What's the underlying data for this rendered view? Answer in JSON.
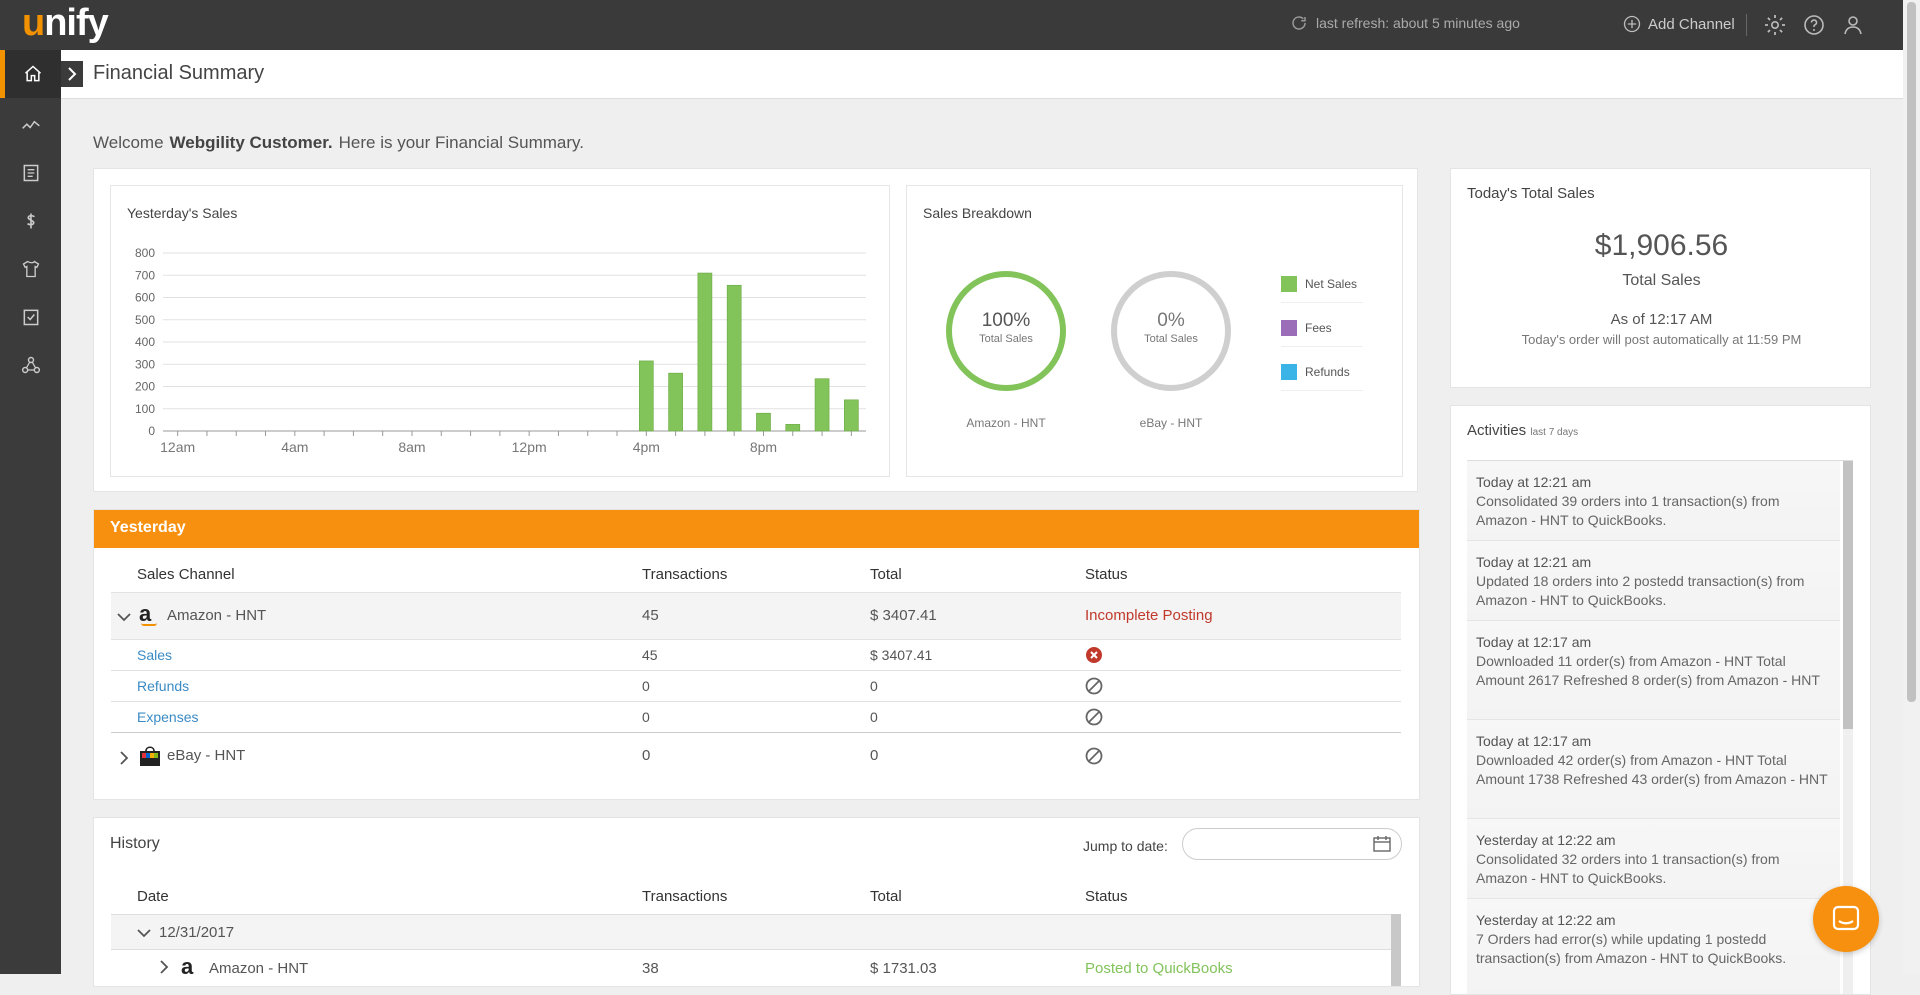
{
  "app": {
    "logo": "unify",
    "logo_initial": "u",
    "logo_rest": "nify"
  },
  "topbar": {
    "refresh_text": "last refresh: about 5 minutes ago",
    "add_channel": "Add Channel",
    "icons": [
      "refresh-icon",
      "plus-circle-icon",
      "gear-icon",
      "help-icon",
      "user-icon"
    ]
  },
  "sidebar": {
    "items": [
      {
        "name": "home-icon",
        "active": true
      },
      {
        "name": "analytics-icon"
      },
      {
        "name": "orders-icon"
      },
      {
        "name": "dollar-icon"
      },
      {
        "name": "products-icon"
      },
      {
        "name": "tasks-icon"
      },
      {
        "name": "integrations-icon"
      }
    ]
  },
  "header": {
    "title": "Financial Summary"
  },
  "welcome": {
    "prefix": "Welcome",
    "name": "Webgility Customer.",
    "suffix": "Here is your Financial Summary."
  },
  "yesterday_sales": {
    "title": "Yesterday's Sales",
    "chart_data": {
      "type": "bar",
      "title": "Yesterday's Sales",
      "x_tick_labels": [
        "12am",
        "4am",
        "8am",
        "12pm",
        "4pm",
        "8pm"
      ],
      "y_ticks": [
        0,
        100,
        200,
        300,
        400,
        500,
        600,
        700,
        800
      ],
      "ylim": [
        0,
        800
      ],
      "hours": [
        0,
        1,
        2,
        3,
        4,
        5,
        6,
        7,
        8,
        9,
        10,
        11,
        12,
        13,
        14,
        15,
        16,
        17,
        18,
        19,
        20,
        21,
        22,
        23
      ],
      "values": [
        0,
        0,
        0,
        0,
        0,
        0,
        0,
        0,
        0,
        0,
        0,
        0,
        0,
        0,
        0,
        0,
        315,
        260,
        710,
        655,
        80,
        30,
        235,
        140
      ],
      "color": "#82c35a",
      "grid": true
    }
  },
  "sales_breakdown": {
    "title": "Sales Breakdown",
    "rings": [
      {
        "pct": "100%",
        "sub": "Total Sales",
        "label": "Amazon - HNT",
        "color": "#82c35a",
        "fill": 1.0
      },
      {
        "pct": "0%",
        "sub": "Total Sales",
        "label": "eBay - HNT",
        "color": "#cfcfcf",
        "fill": 0.0
      }
    ],
    "legend": [
      {
        "label": "Net Sales",
        "color": "#82c35a"
      },
      {
        "label": "Fees",
        "color": "#9b6db8"
      },
      {
        "label": "Refunds",
        "color": "#3ab3e6"
      }
    ]
  },
  "today_total": {
    "title": "Today's Total Sales",
    "amount": "$1,906.56",
    "amount_label": "Total Sales",
    "as_of": "As of 12:17 AM",
    "note": "Today's order will post automatically at 11:59 PM"
  },
  "yesterday": {
    "header": "Yesterday",
    "columns": [
      "Sales Channel",
      "Transactions",
      "Total",
      "Status"
    ],
    "channels": [
      {
        "name": "Amazon - HNT",
        "transactions": "45",
        "total": "$ 3407.41",
        "status": "Incomplete Posting",
        "expanded": true,
        "rows": [
          {
            "label": "Sales",
            "transactions": "45",
            "total": "$ 3407.41",
            "status_icon": "error-icon"
          },
          {
            "label": "Refunds",
            "transactions": "0",
            "total": "0",
            "status_icon": "na-icon"
          },
          {
            "label": "Expenses",
            "transactions": "0",
            "total": "0",
            "status_icon": "na-icon"
          }
        ]
      },
      {
        "name": "eBay - HNT",
        "transactions": "0",
        "total": "0",
        "status_icon": "na-icon",
        "expanded": false
      }
    ]
  },
  "history": {
    "title": "History",
    "jump_label": "Jump to date:",
    "jump_value": "",
    "columns": [
      "Date",
      "Transactions",
      "Total",
      "Status"
    ],
    "group": {
      "date": "12/31/2017",
      "row": {
        "channel": "Amazon - HNT",
        "transactions": "38",
        "total": "$ 1731.03",
        "status": "Posted to QuickBooks"
      }
    }
  },
  "activities": {
    "title": "Activities",
    "subtitle": "last 7 days",
    "items": [
      {
        "time": "Today at 12:21 am",
        "text": "Consolidated 39 orders into 1 transaction(s) from Amazon - HNT to QuickBooks."
      },
      {
        "time": "Today at 12:21 am",
        "text": "Updated 18 orders into 2 postedd transaction(s) from Amazon - HNT to QuickBooks."
      },
      {
        "time": "Today at 12:17 am",
        "text": "Downloaded 11 order(s) from Amazon - HNT Total Amount 2617 Refreshed 8 order(s) from Amazon - HNT"
      },
      {
        "time": "Today at 12:17 am",
        "text": "Downloaded 42 order(s) from Amazon - HNT Total Amount 1738 Refreshed 43 order(s) from Amazon - HNT"
      },
      {
        "time": "Yesterday at 12:22 am",
        "text": "Consolidated 32 orders into 1 transaction(s) from Amazon - HNT to QuickBooks."
      },
      {
        "time": "Yesterday at 12:22 am",
        "text": "7 Orders had error(s) while updating 1 postedd transaction(s) from Amazon - HNT to QuickBooks."
      }
    ]
  },
  "colors": {
    "accent": "#f39200",
    "ok": "#82c35a",
    "error": "#c0392b",
    "link": "#3a8bc5"
  }
}
